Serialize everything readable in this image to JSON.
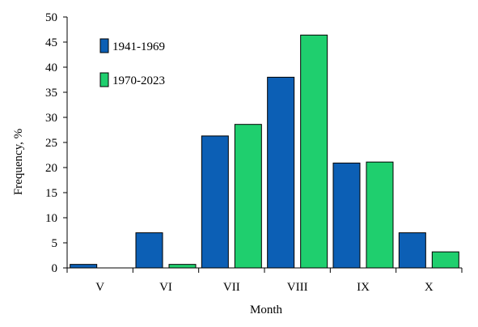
{
  "chart_data": {
    "type": "bar",
    "title": "",
    "xlabel": "Month",
    "ylabel": "Frequency, %",
    "ylim": [
      0,
      50
    ],
    "yticks": [
      0,
      5,
      10,
      15,
      20,
      25,
      30,
      35,
      40,
      45,
      50
    ],
    "ytick_labels": [
      "0",
      "5",
      "10",
      "15",
      "20",
      "25",
      "30",
      "35",
      "40",
      "45",
      "50"
    ],
    "categories": [
      "V",
      "VI",
      "VII",
      "VIII",
      "IX",
      "X"
    ],
    "series": [
      {
        "name": "1941-1969",
        "color": "#0c5fb5",
        "values": [
          0.7,
          7.0,
          26.3,
          38.0,
          20.9,
          7.0
        ]
      },
      {
        "name": "1970-2023",
        "color": "#1fcf6e",
        "values": [
          0.0,
          0.7,
          28.6,
          46.4,
          21.1,
          3.2
        ]
      }
    ],
    "grid": false,
    "legend_position": "top-left"
  }
}
